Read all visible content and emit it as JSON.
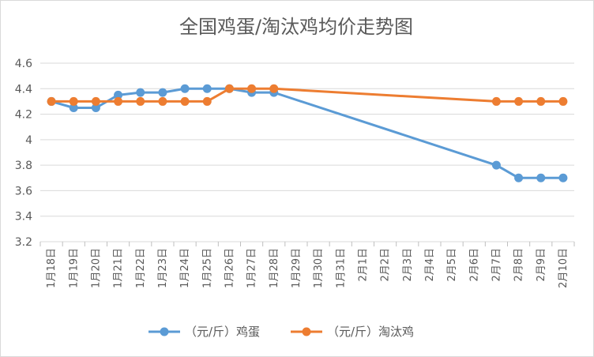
{
  "chart_data": {
    "type": "line",
    "title": "全国鸡蛋/淘汰鸡均价走势图",
    "xlabel": "",
    "ylabel": "",
    "ylim": [
      3.2,
      4.6
    ],
    "yticks": [
      "3.2",
      "3.4",
      "3.6",
      "3.8",
      "4",
      "4.2",
      "4.4",
      "4.6"
    ],
    "grid": true,
    "legend_position": "bottom",
    "categories": [
      "1月18日",
      "1月19日",
      "1月20日",
      "1月21日",
      "1月22日",
      "1月23日",
      "1月24日",
      "1月25日",
      "1月26日",
      "1月27日",
      "1月28日",
      "1月29日",
      "1月30日",
      "1月31日",
      "2月1日",
      "2月2日",
      "2月3日",
      "2月4日",
      "2月5日",
      "2月6日",
      "2月7日",
      "2月8日",
      "2月9日",
      "2月10日"
    ],
    "series": [
      {
        "name": "（元/斤）鸡蛋",
        "color": "#5b9bd5",
        "values": [
          4.3,
          4.25,
          4.25,
          4.35,
          4.37,
          4.37,
          4.4,
          4.4,
          4.4,
          4.37,
          4.37,
          null,
          null,
          null,
          null,
          null,
          null,
          null,
          null,
          null,
          3.8,
          3.7,
          3.7,
          3.7
        ]
      },
      {
        "name": "（元/斤）淘汰鸡",
        "color": "#ed7d31",
        "values": [
          4.3,
          4.3,
          4.3,
          4.3,
          4.3,
          4.3,
          4.3,
          4.3,
          4.4,
          4.4,
          4.4,
          null,
          null,
          null,
          null,
          null,
          null,
          null,
          null,
          null,
          4.3,
          4.3,
          4.3,
          4.3
        ]
      }
    ]
  }
}
